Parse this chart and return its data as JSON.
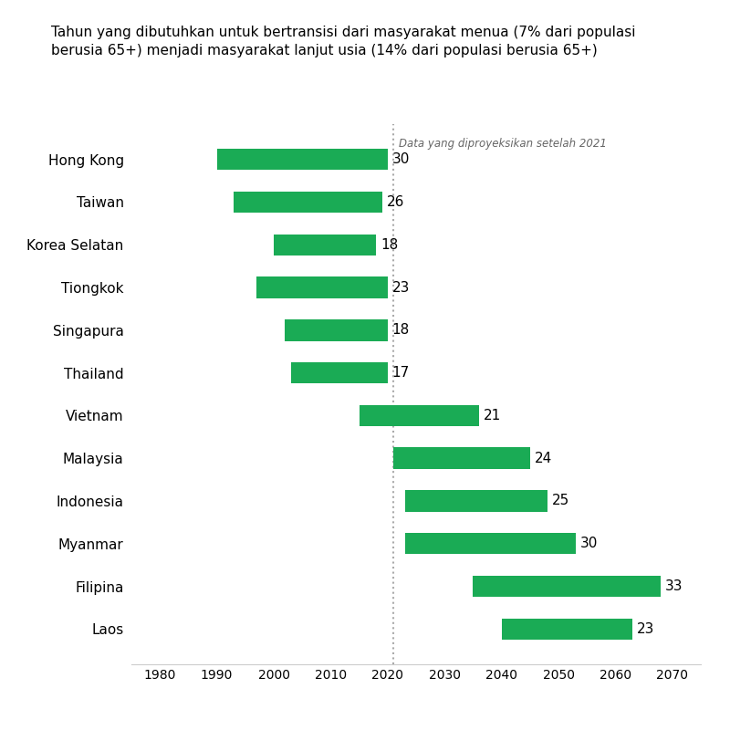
{
  "title": "Tahun yang dibutuhkan untuk bertransisi dari masyarakat menua (7% dari populasi\nberusia 65+) menjadi masyarakat lanjut usia (14% dari populasi berusia 65+)",
  "annotation_text": "Data yang diproyeksikan setelah 2021",
  "vline_x": 2021,
  "bar_color": "#1aab55",
  "countries": [
    "Hong Kong",
    "Taiwan",
    "Korea Selatan",
    "Tiongkok",
    "Singapura",
    "Thailand",
    "Vietnam",
    "Malaysia",
    "Indonesia",
    "Myanmar",
    "Filipina",
    "Laos"
  ],
  "start_years": [
    1990,
    1993,
    2000,
    1997,
    2002,
    2003,
    2015,
    2021,
    2023,
    2023,
    2035,
    2040
  ],
  "durations": [
    30,
    26,
    18,
    23,
    18,
    17,
    21,
    24,
    25,
    30,
    33,
    23
  ],
  "xlim": [
    1975,
    2075
  ],
  "xticks": [
    1980,
    1990,
    2000,
    2010,
    2020,
    2030,
    2040,
    2050,
    2060,
    2070
  ],
  "bg_color": "#ffffff",
  "label_fontsize": 11,
  "title_fontsize": 11,
  "tick_fontsize": 10,
  "duration_fontsize": 11,
  "bar_height": 0.5
}
